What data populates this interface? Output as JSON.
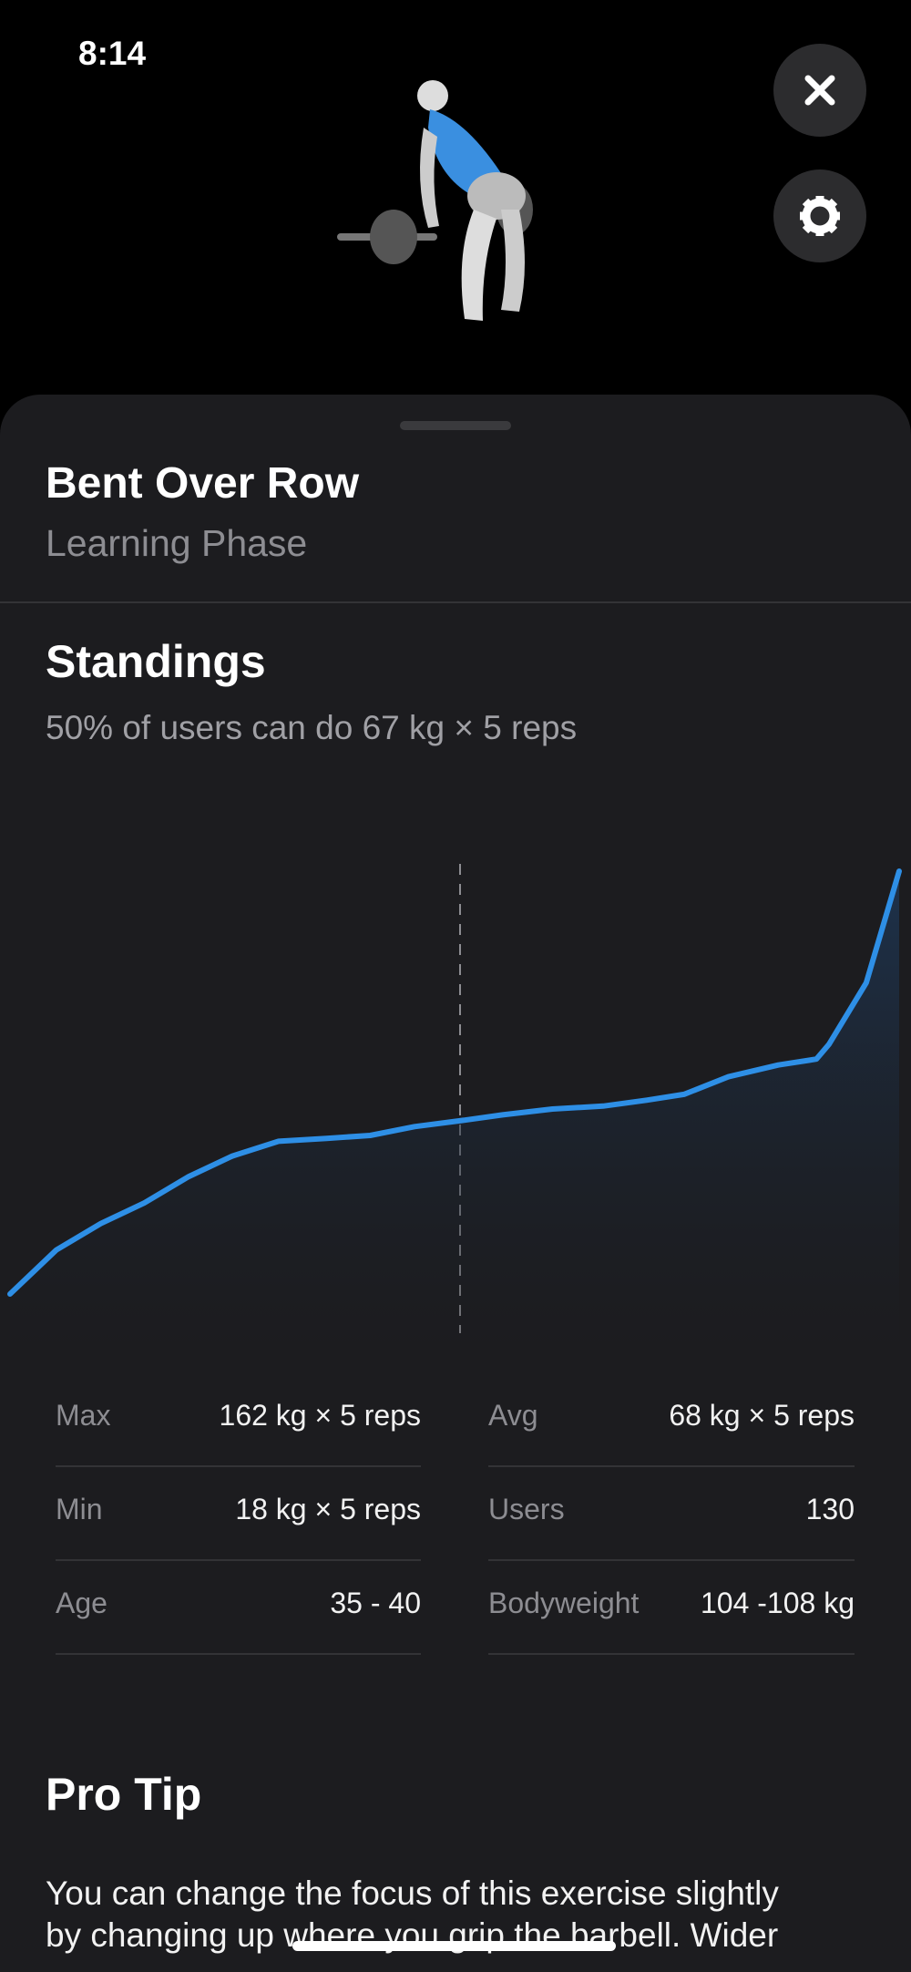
{
  "status_bar": {
    "time": "8:14"
  },
  "header": {
    "title": "Bent Over Row",
    "subtitle": "Learning Phase"
  },
  "standings": {
    "title": "Standings",
    "subtitle": "50% of users can do 67 kg × 5 reps"
  },
  "chart_data": {
    "type": "line",
    "color": "#2e8fe6",
    "x": [
      0,
      5.2,
      10.2,
      15.1,
      20.1,
      25,
      30.2,
      35.6,
      40.5,
      45.5,
      50.6,
      55.4,
      61,
      66.7,
      71.6,
      75.8,
      80.8,
      86.4,
      90.7,
      92.1,
      96.3,
      100
    ],
    "values": [
      18,
      33,
      42,
      49,
      58,
      65,
      70,
      71,
      72,
      75,
      77,
      79,
      81,
      82,
      84,
      86,
      92,
      96,
      98,
      103,
      124,
      162
    ]
  },
  "stats": [
    {
      "label": "Max",
      "value": "162 kg × 5 reps"
    },
    {
      "label": "Avg",
      "value": "68 kg × 5 reps"
    },
    {
      "label": "Min",
      "value": "18 kg × 5 reps"
    },
    {
      "label": "Users",
      "value": "130"
    },
    {
      "label": "Age",
      "value": "35 - 40"
    },
    {
      "label": "Bodyweight",
      "value": "104 -108 kg"
    }
  ],
  "pro_tip": {
    "title": "Pro Tip",
    "lines": [
      "You can change the focus of this exercise slightly",
      "by changing up where you grip the barbell. Wider"
    ]
  }
}
